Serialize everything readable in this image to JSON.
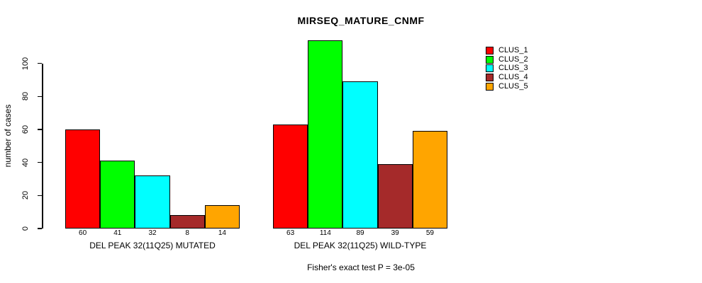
{
  "title": "MIRSEQ_MATURE_CNMF",
  "y_axis": {
    "label": "number of cases",
    "ticks": [
      0,
      20,
      40,
      60,
      80,
      100
    ]
  },
  "footer": "Fisher's exact test P = 3e-05",
  "legend": {
    "items": [
      {
        "label": "CLUS_1",
        "color": "#FF0000"
      },
      {
        "label": "CLUS_2",
        "color": "#00FF00"
      },
      {
        "label": "CLUS_3",
        "color": "#00FFFF"
      },
      {
        "label": "CLUS_4",
        "color": "#A52A2A"
      },
      {
        "label": "CLUS_5",
        "color": "#FFA500"
      }
    ]
  },
  "chart_data": {
    "type": "bar",
    "title": "MIRSEQ_MATURE_CNMF",
    "ylabel": "number of cases",
    "xlabel": "",
    "ylim": [
      0,
      120
    ],
    "yticks": [
      0,
      20,
      40,
      60,
      80,
      100
    ],
    "grid": false,
    "legend_position": "top-right",
    "series": [
      "CLUS_1",
      "CLUS_2",
      "CLUS_3",
      "CLUS_4",
      "CLUS_5"
    ],
    "series_colors": [
      "#FF0000",
      "#00FF00",
      "#00FFFF",
      "#A52A2A",
      "#FFA500"
    ],
    "groups": [
      {
        "category": "DEL PEAK 32(11Q25) MUTATED",
        "values": [
          60,
          41,
          32,
          8,
          14
        ]
      },
      {
        "category": "DEL PEAK 32(11Q25) WILD-TYPE",
        "values": [
          63,
          114,
          89,
          39,
          59
        ]
      }
    ],
    "value_labels_shown": true,
    "annotation": "Fisher's exact test P = 3e-05"
  }
}
